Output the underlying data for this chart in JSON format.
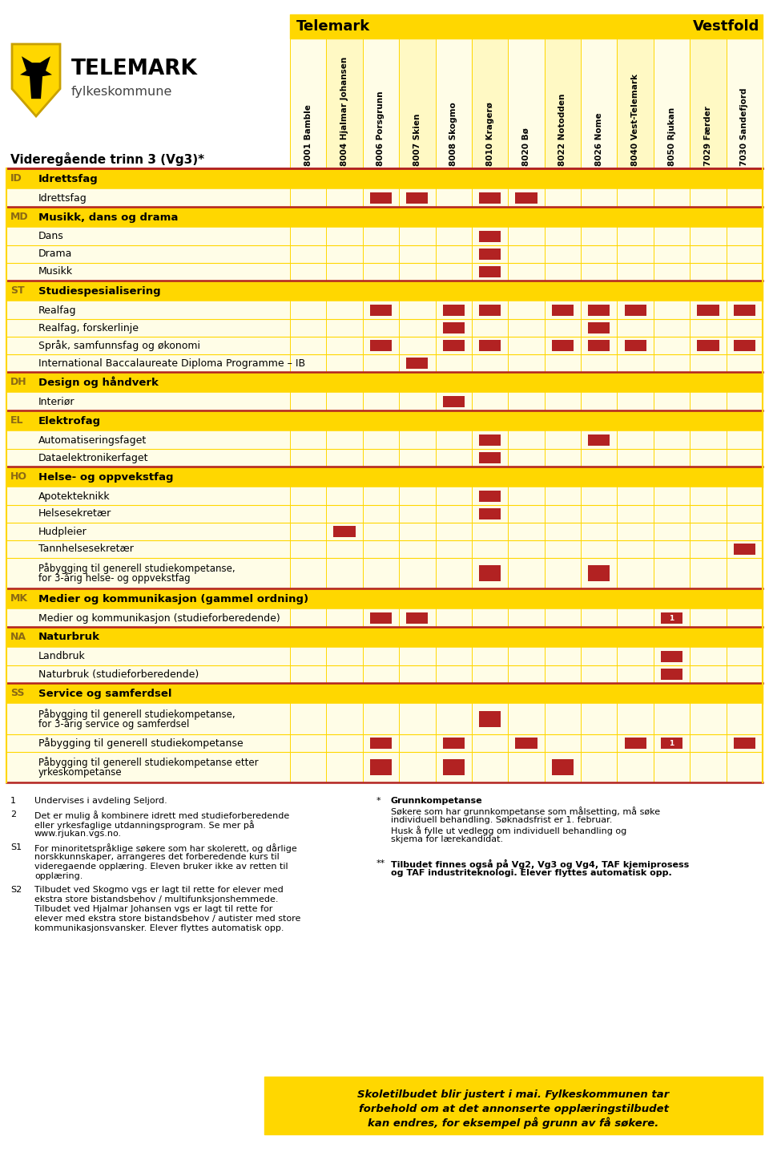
{
  "columns": [
    "8001 Bamble",
    "8004 Hjalmar Johansen",
    "8006 Porsgrunn",
    "8007 Skien",
    "8008 Skogmo",
    "8010 Kragerø",
    "8020 Bø",
    "8022 Notodden",
    "8026 Nome",
    "8040 Vest-Telemark",
    "8050 Rjukan",
    "7029 Færder",
    "7030 Sandefjord"
  ],
  "num_telemark_cols": 11,
  "rows": [
    {
      "type": "header",
      "code": "ID",
      "label": "Idrettsfag"
    },
    {
      "type": "subrow",
      "label": "Idrettsfag",
      "marks": [
        2,
        3,
        5,
        6
      ]
    },
    {
      "type": "header",
      "code": "MD",
      "label": "Musikk, dans og drama"
    },
    {
      "type": "subrow",
      "label": "Dans",
      "marks": [
        5
      ]
    },
    {
      "type": "subrow",
      "label": "Drama",
      "marks": [
        5
      ]
    },
    {
      "type": "subrow",
      "label": "Musikk",
      "marks": [
        5
      ]
    },
    {
      "type": "header",
      "code": "ST",
      "label": "Studiespesialisering"
    },
    {
      "type": "subrow",
      "label": "Realfag",
      "marks": [
        2,
        4,
        5,
        7,
        8,
        9,
        11,
        12
      ]
    },
    {
      "type": "subrow",
      "label": "Realfag, forskerlinje",
      "marks": [
        4,
        8
      ]
    },
    {
      "type": "subrow",
      "label": "Språk, samfunnsfag og økonomi",
      "marks": [
        2,
        4,
        5,
        7,
        8,
        9,
        11,
        12
      ]
    },
    {
      "type": "subrow",
      "label": "International Baccalaureate Diploma Programme – IB",
      "marks": [
        3
      ]
    },
    {
      "type": "header",
      "code": "DH",
      "label": "Design og håndverk"
    },
    {
      "type": "subrow",
      "label": "Interiør",
      "marks": [
        4
      ]
    },
    {
      "type": "header",
      "code": "EL",
      "label": "Elektrofag"
    },
    {
      "type": "subrow",
      "label": "Automatiseringsfaget",
      "marks": [
        5,
        8
      ]
    },
    {
      "type": "subrow",
      "label": "Dataelektronikerfaget",
      "marks": [
        5
      ]
    },
    {
      "type": "header",
      "code": "HO",
      "label": "Helse- og oppvekstfag"
    },
    {
      "type": "subrow",
      "label": "Apotekteknikk",
      "marks": [
        5
      ]
    },
    {
      "type": "subrow",
      "label": "Helsesekretær",
      "marks": [
        5
      ]
    },
    {
      "type": "subrow",
      "label": "Hudpleier",
      "marks": [
        1
      ]
    },
    {
      "type": "subrow",
      "label": "Tannhelsesekretær",
      "marks": [
        12
      ]
    },
    {
      "type": "subrow2",
      "label": "Påbygging til generell studiekompetanse,\nfor 3-årig helse- og oppvekstfag",
      "marks": [
        5,
        8
      ]
    },
    {
      "type": "header",
      "code": "MK",
      "label": "Medier og kommunikasjon (gammel ordning)"
    },
    {
      "type": "subrow",
      "label": "Medier og kommunikasjon (studieforberedende)",
      "marks": [
        2,
        3
      ],
      "marks_num": [
        [
          10,
          "1"
        ]
      ]
    },
    {
      "type": "header",
      "code": "NA",
      "label": "Naturbruk"
    },
    {
      "type": "subrow",
      "label": "Landbruk",
      "marks": [
        10
      ]
    },
    {
      "type": "subrow",
      "label": "Naturbruk (studieforberedende)",
      "marks": [
        10
      ]
    },
    {
      "type": "header",
      "code": "SS",
      "label": "Service og samferdsel"
    },
    {
      "type": "subrow2",
      "label": "Påbygging til generell studiekompetanse,\nfor 3-årig service og samferdsel",
      "marks": [
        5
      ]
    },
    {
      "type": "subrow",
      "label": "Påbygging til generell studiekompetanse",
      "marks": [
        2,
        4,
        6,
        9,
        12
      ],
      "marks_num": [
        [
          10,
          "1"
        ]
      ]
    },
    {
      "type": "subrow2",
      "label": "Påbygging til generell studiekompetanse etter\nyrkeskompetanse",
      "marks": [
        2,
        4,
        7
      ]
    }
  ],
  "footnotes_left": [
    [
      "1",
      "Undervises i avdeling Seljord."
    ],
    [
      "2",
      "Det er mulig å kombinere idrett med studieforberedende\neller yrkesfaglige utdanningsprogram. Se mer på\nwww.rjukan.vgs.no."
    ],
    [
      "S1",
      "For minoritetspråklige søkere som har skolerett, og dårlige\nnorskkunnskaper, arrangeres det forberedende kurs til\nvideregaende opplæring. Eleven bruker ikke av retten til\nopplæring."
    ],
    [
      "S2",
      "Tilbudet ved Skogmo vgs er lagt til rette for elever med\nekstra store bistandsbehov / multifunksjonshemmede.\nTilbudet ved Hjalmar Johansen vgs er lagt til rette for\nelever med ekstra store bistandsbehov / autister med store\nkommunikasjonsvansker. Elever flyttes automatisk opp."
    ]
  ],
  "footnote_star_title": "Grunnkompetanse",
  "footnote_star_body": "Søkere som har grunnkompetanse som målsetting, må søke\nindividuell behandling. Søknadsfrist er 1. februar.\nHusk å fylle ut vedlegg om individuell behandling og\nskjema for lærekandidat.",
  "footnote_dstar_body": "Tilbudet finnes også på Vg2, Vg3 og Vg4, TAF kjemiprosess\nog TAF industriteknologi. Elever flyttes automatisk opp.",
  "bottom_note_line1": "Skoletilbudet blir justert i mai. Fylkeskommunen tar",
  "bottom_note_line2": "forbehold om at det annonserte opplæringstilbudet",
  "bottom_note_line3": "kan endres, for eksempel på grunn av få søkere.",
  "YELLOW": "#FFD700",
  "LIGHT_YELLOW": "#FFFDE7",
  "PALE_YELLOW": "#FFFACD",
  "RED": "#B22222",
  "MARK_RED": "#B22222",
  "TEXT_BROWN": "#8B6914",
  "BANNER_YELLOW": "#FFD700"
}
